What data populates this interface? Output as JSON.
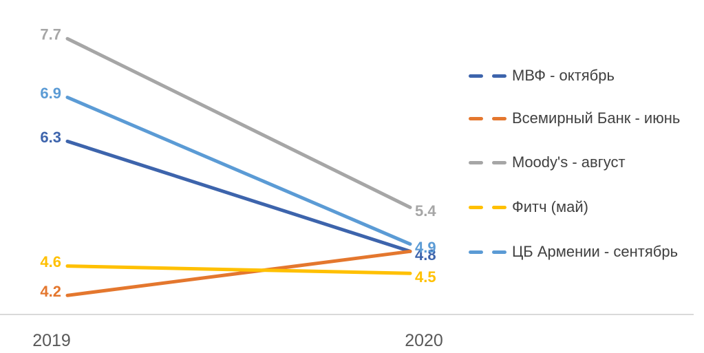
{
  "chart_data": {
    "type": "line",
    "title": "",
    "categories": [
      "2019",
      "2020"
    ],
    "series": [
      {
        "name": "МВФ - октябрь",
        "color": "#3d64ac",
        "values": [
          6.3,
          4.8
        ],
        "point_labels": [
          "6.3",
          "4.8"
        ]
      },
      {
        "name": "Всемирный Банк - июнь",
        "color": "#e4772e",
        "values": [
          4.2,
          4.8
        ],
        "point_labels": [
          "4.2",
          ""
        ]
      },
      {
        "name": "Moody's - август",
        "color": "#a6a6a6",
        "values": [
          7.7,
          5.4
        ],
        "point_labels": [
          "7.7",
          "5.4"
        ]
      },
      {
        "name": "Фитч (май)",
        "color": "#ffc000",
        "values": [
          4.6,
          4.5
        ],
        "point_labels": [
          "4.6",
          "4.5"
        ]
      },
      {
        "name": "ЦБ Армении - сентябрь",
        "color": "#5b9bd5",
        "values": [
          6.9,
          4.9
        ],
        "point_labels": [
          "6.9",
          "4.9"
        ]
      }
    ],
    "legend": {
      "position": "right",
      "items": [
        "МВФ - октябрь",
        "Всемирный Банк - июнь",
        "Moody's - август",
        "Фитч (май)",
        "ЦБ Армении - сентябрь"
      ]
    },
    "axes": {
      "x_labels": [
        "2019",
        "2020"
      ],
      "y_axis_visible": false,
      "grid": false,
      "y_range_estimate": [
        3.9,
        8.2
      ]
    }
  },
  "colors": {
    "background": "#ffffff",
    "axis_line": "#d9d9d9",
    "axis_label_text": "#595959",
    "legend_text": "#404040"
  }
}
